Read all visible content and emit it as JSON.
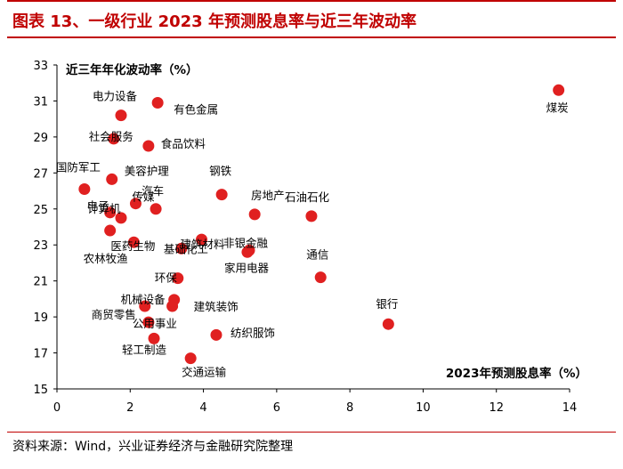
{
  "title": "图表 13、一级行业 2023 年预测股息率与近三年波动率",
  "source": "资料来源：Wind，兴业证券经济与金融研究院整理",
  "colors": {
    "accent": "#c00000",
    "point": "#e02020"
  },
  "chart_data": {
    "type": "scatter",
    "title": "一级行业 2023 年预测股息率与近三年波动率",
    "xlabel": "2023年预测股息率（%）",
    "ylabel": "近三年年化波动率（%）",
    "xlim": [
      0,
      14
    ],
    "ylim": [
      15,
      33
    ],
    "xticks": [
      0,
      2,
      4,
      6,
      8,
      10,
      12,
      14
    ],
    "yticks": [
      15,
      17,
      19,
      21,
      23,
      25,
      27,
      29,
      31,
      33
    ],
    "grid": false,
    "points": [
      {
        "name": "煤炭",
        "x": 13.7,
        "y": 31.6
      },
      {
        "name": "有色金属",
        "x": 2.75,
        "y": 30.9
      },
      {
        "name": "电力设备",
        "x": 1.75,
        "y": 30.2
      },
      {
        "name": "社会服务",
        "x": 1.55,
        "y": 28.9
      },
      {
        "name": "食品饮料",
        "x": 2.5,
        "y": 28.5
      },
      {
        "name": "国防军工",
        "x": 0.75,
        "y": 26.1
      },
      {
        "name": "美容护理",
        "x": 1.5,
        "y": 26.65
      },
      {
        "name": "传媒",
        "x": 2.15,
        "y": 25.3
      },
      {
        "name": "电子",
        "x": 1.45,
        "y": 24.8
      },
      {
        "name": "汽车",
        "x": 2.7,
        "y": 25.0
      },
      {
        "name": "钢铁",
        "x": 4.5,
        "y": 25.8
      },
      {
        "name": "计算机",
        "x": 1.75,
        "y": 24.5
      },
      {
        "name": "房地产",
        "x": 5.4,
        "y": 24.7
      },
      {
        "name": "石油石化",
        "x": 6.95,
        "y": 24.6
      },
      {
        "name": "建筑材料",
        "x": 3.95,
        "y": 23.3
      },
      {
        "name": "医药生物",
        "x": 2.1,
        "y": 23.15
      },
      {
        "name": "基础化工",
        "x": 3.4,
        "y": 22.8
      },
      {
        "name": "非银金融",
        "x": 5.2,
        "y": 22.6
      },
      {
        "name": "家用电器",
        "x": 5.25,
        "y": 22.7
      },
      {
        "name": "农林牧渔",
        "x": 1.45,
        "y": 23.8
      },
      {
        "name": "环保",
        "x": 3.3,
        "y": 21.15
      },
      {
        "name": "通信",
        "x": 7.2,
        "y": 21.2
      },
      {
        "name": "建筑装饰",
        "x": 3.2,
        "y": 19.95
      },
      {
        "name": "机械设备",
        "x": 3.15,
        "y": 19.6
      },
      {
        "name": "商贸零售",
        "x": 2.4,
        "y": 19.6
      },
      {
        "name": "公用事业",
        "x": 2.5,
        "y": 18.7
      },
      {
        "name": "银行",
        "x": 9.05,
        "y": 18.6
      },
      {
        "name": "纺织服饰",
        "x": 4.35,
        "y": 18.0
      },
      {
        "name": "轻工制造",
        "x": 2.65,
        "y": 17.8
      },
      {
        "name": "交通运输",
        "x": 3.65,
        "y": 16.7
      }
    ]
  }
}
